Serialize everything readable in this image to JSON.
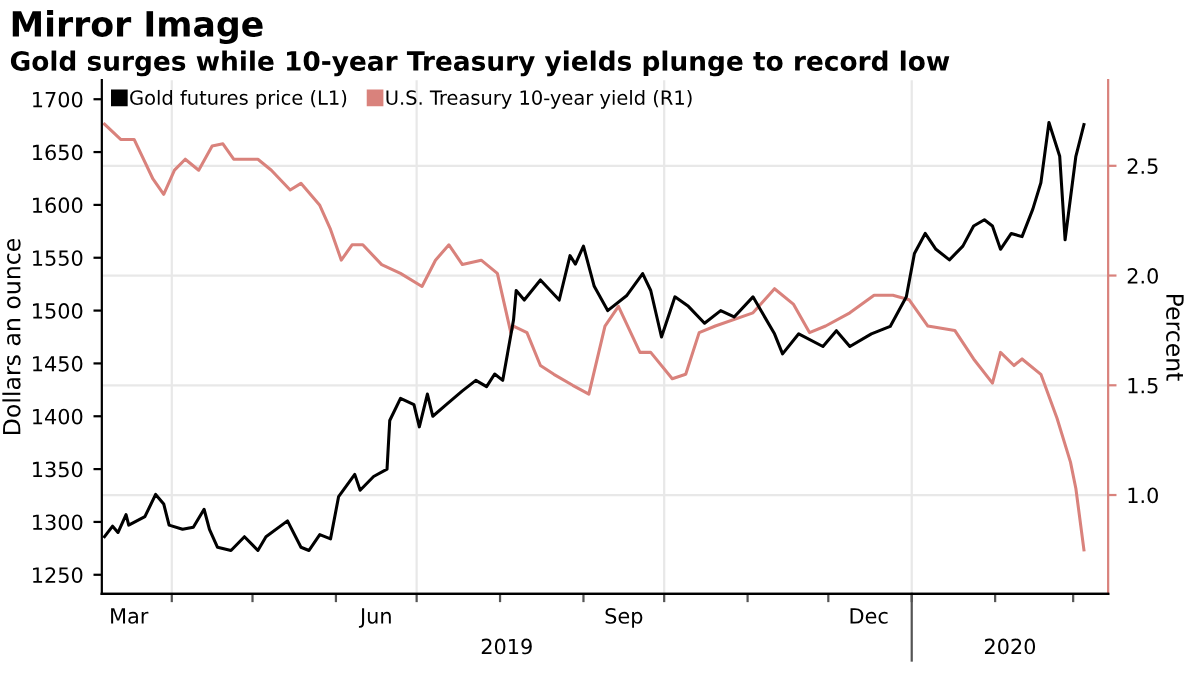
{
  "chart_data": {
    "type": "line",
    "title": "Mirror Image",
    "subtitle": "Gold surges while 10-year Treasury yields plunge to record low",
    "ylabel": "Dollars an ounce",
    "y2label": "Percent",
    "series": [
      {
        "name": "Gold futures price (L1)",
        "color": "#000000",
        "axis": "y",
        "x": [
          "2019-03-07",
          "2019-03-10",
          "2019-03-12",
          "2019-03-15",
          "2019-03-16",
          "2019-03-22",
          "2019-03-26",
          "2019-03-29",
          "2019-03-31",
          "2019-04-05",
          "2019-04-09",
          "2019-04-13",
          "2019-04-15",
          "2019-04-18",
          "2019-04-23",
          "2019-04-28",
          "2019-05-03",
          "2019-05-06",
          "2019-05-14",
          "2019-05-19",
          "2019-05-22",
          "2019-05-26",
          "2019-05-30",
          "2019-06-02",
          "2019-06-08",
          "2019-06-10",
          "2019-06-15",
          "2019-06-20",
          "2019-06-21",
          "2019-06-25",
          "2019-06-30",
          "2019-07-02",
          "2019-07-05",
          "2019-07-07",
          "2019-07-12",
          "2019-07-18",
          "2019-07-23",
          "2019-07-27",
          "2019-07-30",
          "2019-08-02",
          "2019-08-06",
          "2019-08-07",
          "2019-08-10",
          "2019-08-16",
          "2019-08-23",
          "2019-08-27",
          "2019-08-29",
          "2019-09-01",
          "2019-09-05",
          "2019-09-10",
          "2019-09-17",
          "2019-09-23",
          "2019-09-26",
          "2019-09-30",
          "2019-10-05",
          "2019-10-10",
          "2019-10-16",
          "2019-10-22",
          "2019-10-27",
          "2019-11-03",
          "2019-11-11",
          "2019-11-14",
          "2019-11-20",
          "2019-11-29",
          "2019-12-04",
          "2019-12-09",
          "2019-12-17",
          "2019-12-24",
          "2019-12-30",
          "2020-01-02",
          "2020-01-06",
          "2020-01-10",
          "2020-01-15",
          "2020-01-20",
          "2020-01-24",
          "2020-01-28",
          "2020-01-31",
          "2020-02-03",
          "2020-02-07",
          "2020-02-11",
          "2020-02-15",
          "2020-02-18",
          "2020-02-21",
          "2020-02-25",
          "2020-02-27",
          "2020-03-02",
          "2020-03-05"
        ],
        "values": [
          1286,
          1296,
          1290,
          1307,
          1297,
          1305,
          1326,
          1317,
          1297,
          1293,
          1295,
          1312,
          1293,
          1276,
          1273,
          1286,
          1273,
          1286,
          1301,
          1276,
          1273,
          1288,
          1284,
          1324,
          1345,
          1330,
          1343,
          1350,
          1396,
          1417,
          1411,
          1390,
          1421,
          1400,
          1411,
          1424,
          1434,
          1428,
          1440,
          1434,
          1491,
          1519,
          1510,
          1529,
          1510,
          1552,
          1544,
          1561,
          1523,
          1500,
          1514,
          1535,
          1519,
          1475,
          1513,
          1504,
          1488,
          1500,
          1494,
          1513,
          1478,
          1459,
          1478,
          1466,
          1481,
          1466,
          1478,
          1485,
          1513,
          1554,
          1573,
          1558,
          1548,
          1561,
          1580,
          1586,
          1580,
          1558,
          1573,
          1570,
          1596,
          1621,
          1678,
          1646,
          1567,
          1646,
          1676
        ]
      },
      {
        "name": "U.S. Treasury 10-year yield (R1)",
        "color": "#d9827c",
        "axis": "y2",
        "x": [
          "2019-03-07",
          "2019-03-13",
          "2019-03-18",
          "2019-03-25",
          "2019-03-29",
          "2019-04-02",
          "2019-04-06",
          "2019-04-11",
          "2019-04-16",
          "2019-04-20",
          "2019-04-24",
          "2019-05-03",
          "2019-05-08",
          "2019-05-15",
          "2019-05-19",
          "2019-05-26",
          "2019-05-30",
          "2019-06-03",
          "2019-06-07",
          "2019-06-11",
          "2019-06-18",
          "2019-06-25",
          "2019-07-03",
          "2019-07-08",
          "2019-07-13",
          "2019-07-18",
          "2019-07-25",
          "2019-07-31",
          "2019-08-05",
          "2019-08-06",
          "2019-08-11",
          "2019-08-16",
          "2019-08-21",
          "2019-08-28",
          "2019-09-03",
          "2019-09-09",
          "2019-09-14",
          "2019-09-22",
          "2019-09-26",
          "2019-10-04",
          "2019-10-09",
          "2019-10-14",
          "2019-10-20",
          "2019-11-03",
          "2019-11-11",
          "2019-11-18",
          "2019-11-24",
          "2019-11-30",
          "2019-12-09",
          "2019-12-18",
          "2019-12-25",
          "2019-12-31",
          "2020-01-07",
          "2020-01-17",
          "2020-01-24",
          "2020-01-31",
          "2020-02-03",
          "2020-02-08",
          "2020-02-11",
          "2020-02-18",
          "2020-02-24",
          "2020-02-29",
          "2020-03-02",
          "2020-03-05"
        ],
        "values": [
          2.69,
          2.62,
          2.62,
          2.44,
          2.37,
          2.48,
          2.53,
          2.48,
          2.59,
          2.6,
          2.53,
          2.53,
          2.48,
          2.39,
          2.42,
          2.32,
          2.21,
          2.07,
          2.14,
          2.14,
          2.05,
          2.01,
          1.95,
          2.07,
          2.14,
          2.05,
          2.07,
          2.01,
          1.74,
          1.77,
          1.74,
          1.59,
          1.55,
          1.5,
          1.46,
          1.77,
          1.86,
          1.65,
          1.65,
          1.53,
          1.55,
          1.74,
          1.77,
          1.83,
          1.94,
          1.87,
          1.74,
          1.77,
          1.83,
          1.91,
          1.91,
          1.89,
          1.77,
          1.75,
          1.62,
          1.51,
          1.65,
          1.59,
          1.62,
          1.55,
          1.35,
          1.15,
          1.03,
          0.75
        ]
      }
    ],
    "xlim": [
      "2019-03-06",
      "2020-03-14"
    ],
    "xticks": [
      {
        "value": "2019-04-01",
        "label": null
      },
      {
        "value": "2019-05-01",
        "label": null
      },
      {
        "value": "2019-06-01",
        "label": null
      },
      {
        "value": "2019-07-01",
        "label": null
      },
      {
        "value": "2019-08-01",
        "label": null
      },
      {
        "value": "2019-09-01",
        "label": null
      },
      {
        "value": "2019-10-01",
        "label": null
      },
      {
        "value": "2019-11-01",
        "label": null
      },
      {
        "value": "2019-12-01",
        "label": null
      },
      {
        "value": "2020-01-01",
        "label": null
      },
      {
        "value": "2020-02-01",
        "label": null
      },
      {
        "value": "2020-03-01",
        "label": null
      },
      {
        "value": "2019-03-16",
        "label": "Mar"
      },
      {
        "value": "2019-06-16",
        "label": "Jun"
      },
      {
        "value": "2019-09-16",
        "label": "Sep"
      },
      {
        "value": "2019-12-16",
        "label": "Dec"
      }
    ],
    "ylim": [
      1232,
      1718
    ],
    "yticks": [
      1250,
      1300,
      1350,
      1400,
      1450,
      1500,
      1550,
      1600,
      1650,
      1700
    ],
    "y2lim": [
      0.55,
      2.89
    ],
    "y2ticks": [
      {
        "value": 1,
        "label": "1.0"
      },
      {
        "value": 1.5,
        "label": "1.5"
      },
      {
        "value": 2,
        "label": "2.0"
      },
      {
        "value": 2.5,
        "label": "2.5"
      }
    ],
    "ref_lines": [
      {
        "axis": "x",
        "value": "2019-04-01",
        "color": "#e8e8e8"
      },
      {
        "axis": "x",
        "value": "2019-07-01",
        "color": "#e8e8e8"
      },
      {
        "axis": "x",
        "value": "2019-10-01",
        "color": "#e8e8e8"
      },
      {
        "axis": "x",
        "value": "2020-01-01",
        "color": "#e8e8e8"
      }
    ],
    "annotations": [
      "2019",
      "2020"
    ],
    "grid": "y",
    "legend": "top left",
    "marker": "none",
    "line_style": "solid"
  }
}
